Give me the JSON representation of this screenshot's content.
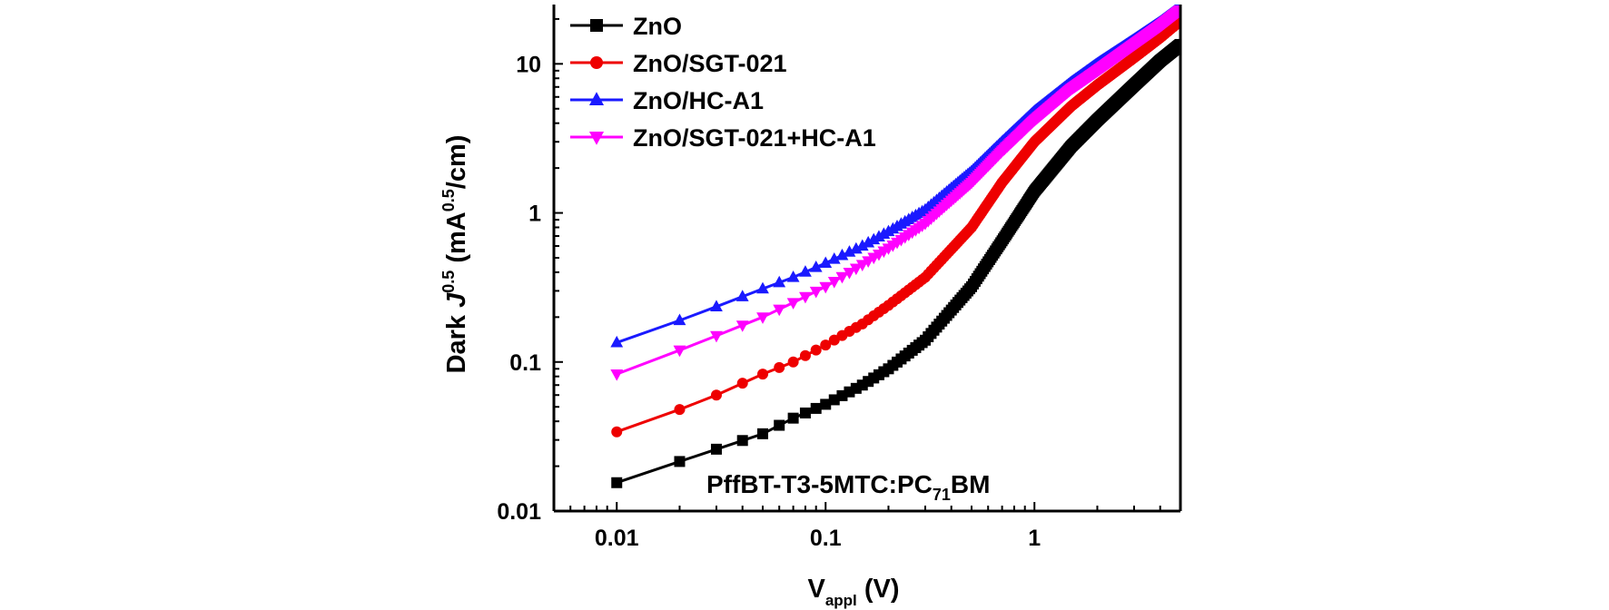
{
  "chart_data": {
    "type": "line",
    "title": "",
    "x_scale": "log",
    "y_scale": "log",
    "xlim": [
      0.005,
      5
    ],
    "ylim": [
      0.01,
      25
    ],
    "grid": false,
    "legend_position": "top-left",
    "xlabel": {
      "main": "V",
      "sub": "appl",
      "unit": " (V)"
    },
    "ylabel": {
      "prefix": "Dark ",
      "italic": "J",
      "sup": "0.5",
      "mid": " (mA",
      "sup2": "0.5",
      "suffix": "/cm)"
    },
    "x_ticks": [
      {
        "value": 0.01,
        "label": "0.01"
      },
      {
        "value": 0.1,
        "label": "0.1"
      },
      {
        "value": 1,
        "label": "1"
      }
    ],
    "y_ticks": [
      {
        "value": 0.01,
        "label": "0.01"
      },
      {
        "value": 0.1,
        "label": "0.1"
      },
      {
        "value": 1,
        "label": "1"
      },
      {
        "value": 10,
        "label": "10"
      }
    ],
    "annotation": {
      "main": "PffBT-T3-5MTC:PC",
      "sub": "71",
      "suffix": "BM"
    },
    "series": [
      {
        "name": "ZnO",
        "color": "#000000",
        "marker": "square",
        "points": [
          [
            0.01,
            0.0155
          ],
          [
            0.02,
            0.0215
          ],
          [
            0.03,
            0.026
          ],
          [
            0.05,
            0.033
          ],
          [
            0.07,
            0.042
          ],
          [
            0.1,
            0.052
          ],
          [
            0.15,
            0.07
          ],
          [
            0.2,
            0.09
          ],
          [
            0.3,
            0.14
          ],
          [
            0.5,
            0.32
          ],
          [
            0.7,
            0.65
          ],
          [
            1.0,
            1.4
          ],
          [
            1.5,
            2.8
          ],
          [
            2,
            4.2
          ],
          [
            3,
            7.2
          ],
          [
            4,
            10.5
          ],
          [
            5,
            13.5
          ]
        ]
      },
      {
        "name": "ZnO/SGT-021",
        "color": "#ee0000",
        "marker": "circle",
        "points": [
          [
            0.01,
            0.034
          ],
          [
            0.02,
            0.048
          ],
          [
            0.03,
            0.06
          ],
          [
            0.05,
            0.083
          ],
          [
            0.07,
            0.1
          ],
          [
            0.1,
            0.13
          ],
          [
            0.15,
            0.18
          ],
          [
            0.2,
            0.24
          ],
          [
            0.3,
            0.37
          ],
          [
            0.5,
            0.8
          ],
          [
            0.7,
            1.6
          ],
          [
            1.0,
            3.0
          ],
          [
            1.5,
            5.2
          ],
          [
            2,
            7.2
          ],
          [
            3,
            11
          ],
          [
            4,
            15
          ],
          [
            5,
            19.5
          ]
        ]
      },
      {
        "name": "ZnO/HC-A1",
        "color": "#1a1aff",
        "marker": "triangle-up",
        "points": [
          [
            0.01,
            0.135
          ],
          [
            0.02,
            0.19
          ],
          [
            0.03,
            0.235
          ],
          [
            0.05,
            0.31
          ],
          [
            0.07,
            0.37
          ],
          [
            0.1,
            0.46
          ],
          [
            0.15,
            0.6
          ],
          [
            0.2,
            0.75
          ],
          [
            0.3,
            1.05
          ],
          [
            0.5,
            1.9
          ],
          [
            0.7,
            3.0
          ],
          [
            1.0,
            4.8
          ],
          [
            1.5,
            7.5
          ],
          [
            2,
            10
          ],
          [
            3,
            14.5
          ],
          [
            4,
            19
          ],
          [
            5,
            24
          ]
        ]
      },
      {
        "name": "ZnO/SGT-021+HC-A1",
        "color": "#ff00ff",
        "marker": "triangle-down",
        "points": [
          [
            0.01,
            0.083
          ],
          [
            0.02,
            0.12
          ],
          [
            0.03,
            0.15
          ],
          [
            0.05,
            0.2
          ],
          [
            0.07,
            0.25
          ],
          [
            0.1,
            0.32
          ],
          [
            0.15,
            0.45
          ],
          [
            0.2,
            0.58
          ],
          [
            0.3,
            0.85
          ],
          [
            0.5,
            1.6
          ],
          [
            0.7,
            2.6
          ],
          [
            1.0,
            4.2
          ],
          [
            1.5,
            6.8
          ],
          [
            2,
            9
          ],
          [
            3,
            13.5
          ],
          [
            4,
            18
          ],
          [
            5,
            23
          ]
        ]
      }
    ]
  }
}
